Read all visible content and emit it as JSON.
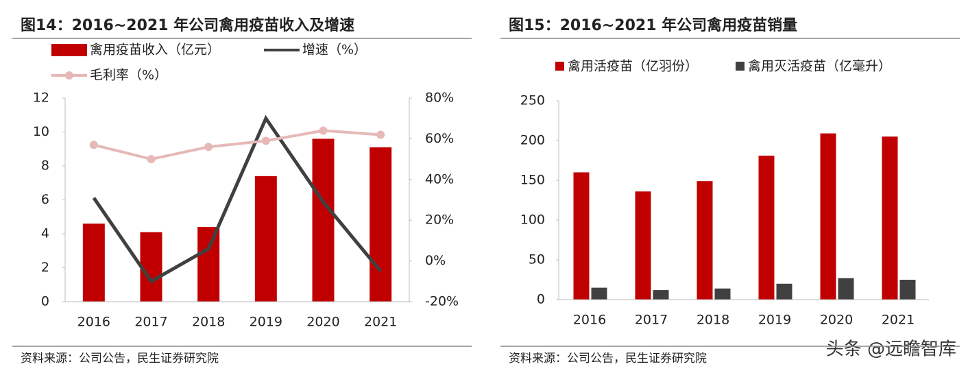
{
  "chart_data": [
    {
      "type": "bar",
      "title": "图14：2016~2021 年公司禽用疫苗收入及增速",
      "categories": [
        "2016",
        "2017",
        "2018",
        "2019",
        "2020",
        "2021"
      ],
      "series": [
        {
          "name": "禽用疫苗收入（亿元）",
          "type": "bar",
          "color": "#c00000",
          "values": [
            4.6,
            4.1,
            4.4,
            7.4,
            9.6,
            9.1
          ]
        },
        {
          "name": "增速（%）",
          "type": "line",
          "axis": "y2",
          "color": "#404040",
          "values": [
            31,
            -10,
            6,
            70,
            29,
            -5
          ]
        },
        {
          "name": "毛利率（%）",
          "type": "line",
          "axis": "y2",
          "color": "#e6b9b8",
          "markers": true,
          "values": [
            57,
            50,
            56,
            59,
            64,
            62
          ]
        }
      ],
      "ylim": [
        0,
        12
      ],
      "yticks": [
        0,
        2,
        4,
        6,
        8,
        10,
        12
      ],
      "y2lim": [
        -20,
        80
      ],
      "y2ticks": [
        {
          "value": -20,
          "label": "-20%"
        },
        {
          "value": 0,
          "label": "0%"
        },
        {
          "value": 20,
          "label": "20%"
        },
        {
          "value": 40,
          "label": "40%"
        },
        {
          "value": 60,
          "label": "60%"
        },
        {
          "value": 80,
          "label": "80%"
        }
      ],
      "source": "资料来源：公司公告，民生证券研究院"
    },
    {
      "type": "bar",
      "title": "图15：2016~2021 年公司禽用疫苗销量",
      "categories": [
        "2016",
        "2017",
        "2018",
        "2019",
        "2020",
        "2021"
      ],
      "series": [
        {
          "name": "禽用活疫苗（亿羽份）",
          "type": "bar",
          "color": "#c00000",
          "values": [
            160,
            136,
            149,
            181,
            209,
            205
          ]
        },
        {
          "name": "禽用灭活疫苗（亿毫升）",
          "type": "bar",
          "color": "#404040",
          "values": [
            15,
            12,
            14,
            20,
            27,
            25
          ]
        }
      ],
      "ylim": [
        0,
        250
      ],
      "yticks": [
        0,
        50,
        100,
        150,
        200,
        250
      ],
      "source": "资料来源：公司公告，民生证券研究院"
    }
  ],
  "watermark": "头条 @远瞻智库"
}
